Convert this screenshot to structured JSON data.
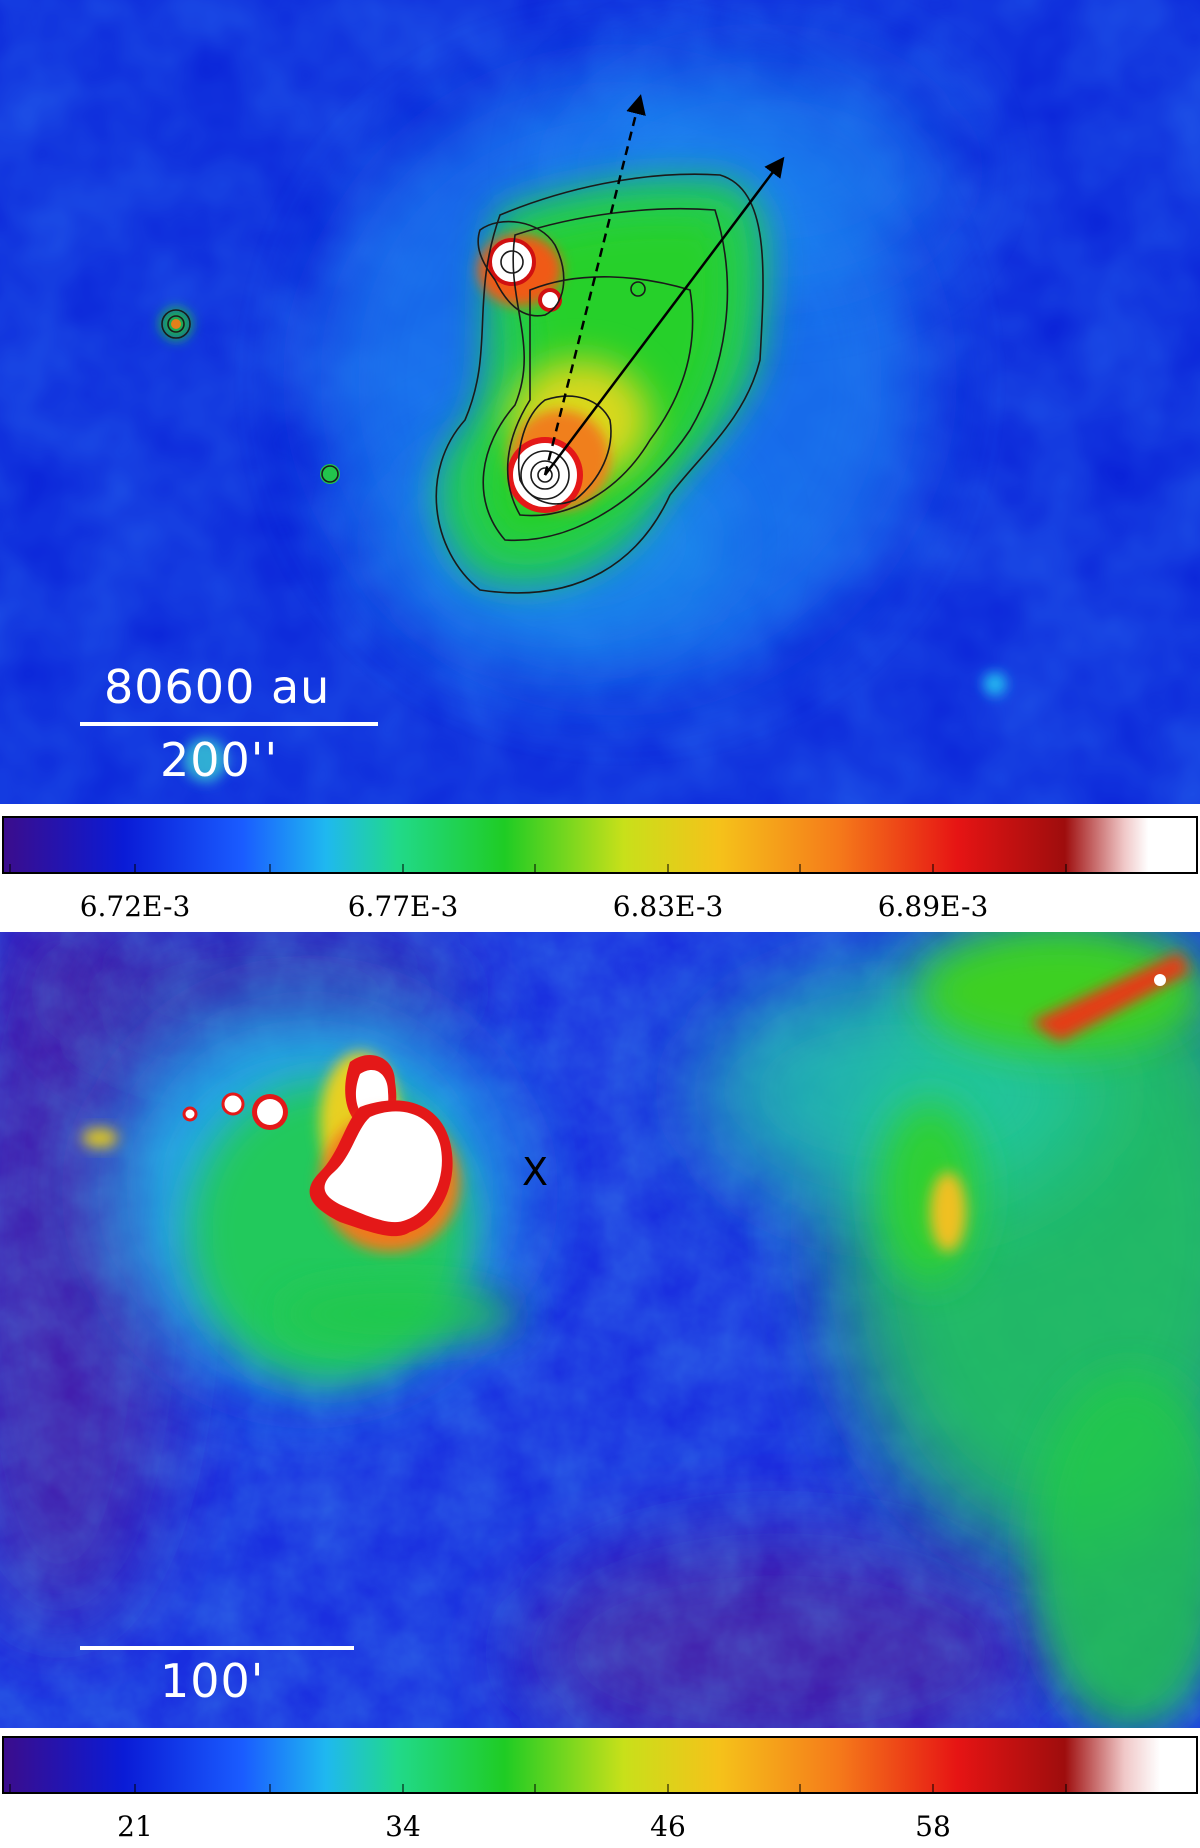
{
  "top_panel": {
    "scalebar_top_label": "80600 au",
    "scalebar_bottom_label": "200''"
  },
  "top_colorbar": {
    "tick_labels": [
      "6.72E-3",
      "6.77E-3",
      "6.83E-3",
      "6.89E-3"
    ]
  },
  "bottom_panel": {
    "scalebar_label": "100'",
    "marker_label": "X"
  },
  "bottom_colorbar": {
    "tick_labels": [
      "21",
      "34",
      "46",
      "58"
    ]
  },
  "colors": {
    "colormap": [
      "#3b0d8c",
      "#0a1bd6",
      "#1a5cff",
      "#1fb8f0",
      "#21d98a",
      "#1fcc24",
      "#c8e01a",
      "#f5c21a",
      "#f57a1a",
      "#e61414",
      "#9e0d0d",
      "#ffffff"
    ]
  }
}
